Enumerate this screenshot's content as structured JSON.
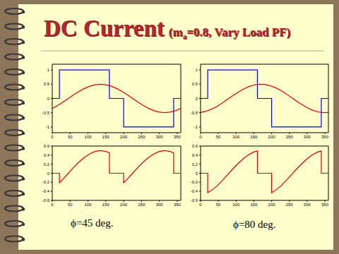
{
  "title": "DC Current",
  "subtitle": {
    "before": "(m",
    "subscript": "a",
    "after": "=0.8, Vary Load PF)"
  },
  "captions": [
    "ϕ=45 deg.",
    "ϕ=80 deg."
  ],
  "chart_data": [
    {
      "type": "line",
      "xlim": [
        0,
        360
      ],
      "xticks": [
        0,
        50,
        100,
        150,
        200,
        250,
        300,
        350
      ],
      "ylim": [
        -1.2,
        1.2
      ],
      "yticks": [
        -1,
        -0.5,
        0,
        0.5,
        1
      ],
      "grid": false,
      "series": [
        {
          "color": "#0000ff",
          "x": [
            0,
            20,
            20,
            160,
            160,
            200,
            200,
            340,
            340,
            360
          ],
          "values": [
            0,
            0,
            1,
            1,
            0,
            0,
            -1,
            -1,
            0,
            0
          ]
        },
        {
          "color": "#e00000",
          "x": [
            0,
            15,
            30,
            45,
            60,
            75,
            90,
            105,
            120,
            135,
            150,
            165,
            180,
            195,
            210,
            225,
            240,
            255,
            270,
            285,
            300,
            315,
            330,
            345,
            360
          ],
          "values": [
            -0.35,
            -0.25,
            -0.13,
            0,
            0.13,
            0.25,
            0.35,
            0.43,
            0.48,
            0.5,
            0.48,
            0.43,
            0.35,
            0.25,
            0.13,
            0,
            -0.13,
            -0.25,
            -0.35,
            -0.43,
            -0.48,
            -0.5,
            -0.48,
            -0.43,
            -0.35
          ]
        }
      ]
    },
    {
      "type": "line",
      "xlim": [
        0,
        360
      ],
      "xticks": [
        0,
        50,
        100,
        150,
        200,
        250,
        300,
        350
      ],
      "ylim": [
        -1.2,
        1.2
      ],
      "yticks": [
        -1,
        -0.5,
        0,
        0.5,
        1
      ],
      "grid": false,
      "series": [
        {
          "color": "#0000ff",
          "x": [
            0,
            20,
            20,
            160,
            160,
            200,
            200,
            340,
            340,
            360
          ],
          "values": [
            0,
            0,
            1,
            1,
            0,
            0,
            -1,
            -1,
            0,
            0
          ]
        },
        {
          "color": "#e00000",
          "x": [
            0,
            15,
            30,
            45,
            60,
            75,
            90,
            105,
            120,
            135,
            150,
            165,
            180,
            195,
            210,
            225,
            240,
            255,
            270,
            285,
            300,
            315,
            330,
            345,
            360
          ],
          "values": [
            -0.49,
            -0.45,
            -0.38,
            -0.29,
            -0.17,
            -0.04,
            0.09,
            0.21,
            0.32,
            0.41,
            0.47,
            0.5,
            0.49,
            0.45,
            0.38,
            0.29,
            0.17,
            0.04,
            -0.09,
            -0.21,
            -0.32,
            -0.41,
            -0.47,
            -0.5,
            -0.49
          ]
        }
      ]
    },
    {
      "type": "line",
      "xlim": [
        0,
        360
      ],
      "xticks": [
        0,
        50,
        100,
        150,
        200,
        250,
        300,
        350
      ],
      "ylim": [
        -0.6,
        0.6
      ],
      "yticks": [
        -0.6,
        -0.4,
        -0.2,
        0,
        0.2,
        0.4,
        0.6
      ],
      "grid": false,
      "series": [
        {
          "color": "#e00000",
          "x": [
            0,
            20,
            20,
            30,
            45,
            60,
            75,
            90,
            105,
            120,
            135,
            150,
            160,
            160,
            200,
            200,
            210,
            225,
            240,
            255,
            270,
            285,
            300,
            315,
            330,
            340,
            340,
            360
          ],
          "values": [
            0,
            0,
            -0.21,
            -0.13,
            0,
            0.13,
            0.25,
            0.35,
            0.43,
            0.48,
            0.5,
            0.48,
            0.45,
            0,
            0,
            -0.21,
            -0.13,
            0,
            0.13,
            0.25,
            0.35,
            0.43,
            0.48,
            0.5,
            0.48,
            0.45,
            0,
            0
          ]
        }
      ]
    },
    {
      "type": "line",
      "xlim": [
        0,
        360
      ],
      "xticks": [
        0,
        50,
        100,
        150,
        200,
        250,
        300,
        350
      ],
      "ylim": [
        -0.6,
        0.6
      ],
      "yticks": [
        -0.6,
        -0.4,
        -0.2,
        0,
        0.2,
        0.4,
        0.6
      ],
      "grid": false,
      "series": [
        {
          "color": "#e00000",
          "x": [
            0,
            20,
            20,
            30,
            45,
            60,
            75,
            90,
            105,
            120,
            135,
            150,
            160,
            160,
            200,
            200,
            210,
            225,
            240,
            255,
            270,
            285,
            300,
            315,
            330,
            340,
            340,
            360
          ],
          "values": [
            0,
            0,
            -0.43,
            -0.38,
            -0.29,
            -0.17,
            -0.04,
            0.09,
            0.21,
            0.32,
            0.41,
            0.47,
            0.49,
            0,
            0,
            -0.43,
            -0.38,
            -0.29,
            -0.17,
            -0.04,
            0.09,
            0.21,
            0.32,
            0.41,
            0.47,
            0.49,
            0,
            0
          ]
        }
      ]
    }
  ]
}
